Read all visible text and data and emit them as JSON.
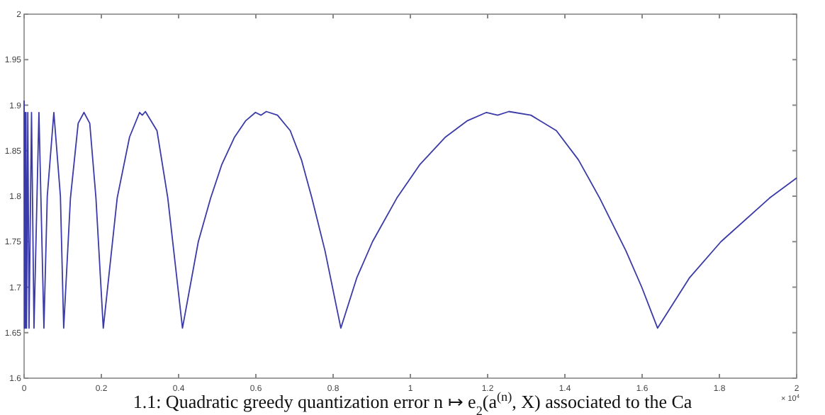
{
  "chart_data": {
    "type": "line",
    "xlim": [
      0,
      2
    ],
    "ylim": [
      1.6,
      2
    ],
    "xticks": [
      0,
      0.2,
      0.4,
      0.6,
      0.8,
      1,
      1.2,
      1.4,
      1.6,
      1.8,
      2
    ],
    "yticks": [
      1.6,
      1.65,
      1.7,
      1.75,
      1.8,
      1.85,
      1.9,
      1.95,
      2
    ],
    "grid": false,
    "marker": "none",
    "line_style": "solid",
    "annotations": [
      "× 10$^{4}$",
      "1.1: Quadratic greedy quantization error n ↦ e$_{2}$(a$^{(n)}$, X) associated to the Ca"
    ],
    "series": [
      {
        "color": "#3a3aa8",
        "x": [
          0,
          0.001,
          0.002,
          0.0032,
          0.0048,
          0.0064,
          0.0096,
          0.0128,
          0.0192,
          0.0256,
          0.0384,
          0.0513,
          0.06,
          0.077,
          0.094,
          0.1025,
          0.12,
          0.14,
          0.155,
          0.17,
          0.186,
          0.205,
          0.241,
          0.273,
          0.299,
          0.306,
          0.314,
          0.344,
          0.372,
          0.41,
          0.451,
          0.483,
          0.512,
          0.545,
          0.574,
          0.599,
          0.613,
          0.627,
          0.656,
          0.689,
          0.718,
          0.745,
          0.779,
          0.82,
          0.861,
          0.902,
          0.965,
          1.025,
          1.091,
          1.148,
          1.197,
          1.226,
          1.255,
          1.312,
          1.378,
          1.435,
          1.49,
          1.558,
          1.599,
          1.64,
          1.722,
          1.804,
          1.93,
          2
        ],
        "values": [
          1.905,
          1.655,
          1.892,
          1.655,
          1.892,
          1.655,
          1.892,
          1.655,
          1.892,
          1.655,
          1.892,
          1.655,
          1.8,
          1.892,
          1.8,
          1.655,
          1.798,
          1.88,
          1.892,
          1.88,
          1.798,
          1.655,
          1.798,
          1.865,
          1.892,
          1.889,
          1.893,
          1.872,
          1.798,
          1.655,
          1.75,
          1.798,
          1.835,
          1.865,
          1.883,
          1.892,
          1.889,
          1.893,
          1.889,
          1.872,
          1.84,
          1.798,
          1.74,
          1.655,
          1.71,
          1.75,
          1.798,
          1.835,
          1.865,
          1.883,
          1.892,
          1.889,
          1.893,
          1.889,
          1.872,
          1.84,
          1.798,
          1.74,
          1.7,
          1.655,
          1.71,
          1.75,
          1.798,
          1.82
        ]
      }
    ]
  }
}
